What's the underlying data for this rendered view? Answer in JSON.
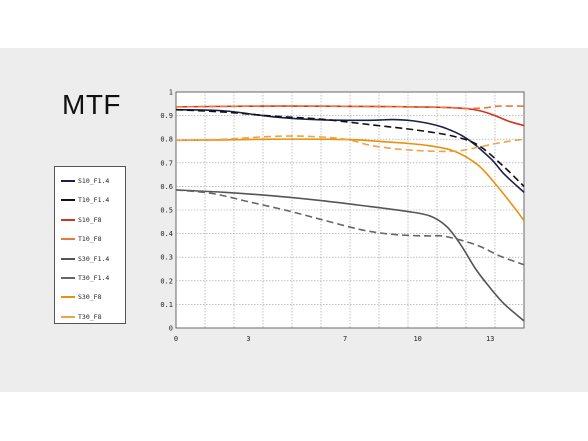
{
  "page": {
    "title": "MTF"
  },
  "chart_data": {
    "type": "line",
    "title": "MTF",
    "xlabel": "",
    "ylabel": "",
    "xlim": [
      0,
      14.4
    ],
    "ylim": [
      0,
      1
    ],
    "x_ticks": [
      0,
      3,
      7,
      10,
      13
    ],
    "y_ticks": [
      0,
      0.1,
      0.2,
      0.3,
      0.4,
      0.5,
      0.6,
      0.7,
      0.8,
      0.9,
      1
    ],
    "x_tick_labels": [
      "0",
      "3",
      "7",
      "10",
      "13"
    ],
    "y_tick_labels": [
      "0",
      "0.1",
      "0.2",
      "0.3",
      "0.4",
      "0.5",
      "0.6",
      "0.7",
      "0.8",
      "0.9",
      "1"
    ],
    "grid": "dotted",
    "legend_position": "left",
    "series": [
      {
        "name": "S10_F1.4",
        "color": "#1a1f4d",
        "dash": "solid",
        "points": [
          [
            0,
            0.925
          ],
          [
            2,
            0.92
          ],
          [
            4,
            0.895
          ],
          [
            6,
            0.882
          ],
          [
            8,
            0.88
          ],
          [
            9,
            0.883
          ],
          [
            10,
            0.875
          ],
          [
            11,
            0.852
          ],
          [
            12,
            0.805
          ],
          [
            13,
            0.72
          ],
          [
            13.6,
            0.65
          ],
          [
            14.4,
            0.575
          ]
        ]
      },
      {
        "name": "T10_F1.4",
        "color": "#111111",
        "dash": "dashed",
        "points": [
          [
            0,
            0.925
          ],
          [
            2,
            0.915
          ],
          [
            4,
            0.898
          ],
          [
            6,
            0.885
          ],
          [
            8,
            0.862
          ],
          [
            10,
            0.838
          ],
          [
            11.5,
            0.812
          ],
          [
            12.5,
            0.775
          ],
          [
            13.5,
            0.69
          ],
          [
            14.4,
            0.6
          ]
        ]
      },
      {
        "name": "S10_F8",
        "color": "#d6311b",
        "dash": "solid",
        "points": [
          [
            0,
            0.937
          ],
          [
            3,
            0.94
          ],
          [
            6,
            0.94
          ],
          [
            9,
            0.938
          ],
          [
            11,
            0.935
          ],
          [
            12,
            0.93
          ],
          [
            12.6,
            0.92
          ],
          [
            13.2,
            0.9
          ],
          [
            13.8,
            0.875
          ],
          [
            14.4,
            0.858
          ]
        ]
      },
      {
        "name": "T10_F8",
        "color": "#e87a3a",
        "dash": "dashed",
        "points": [
          [
            0,
            0.937
          ],
          [
            3,
            0.94
          ],
          [
            6,
            0.94
          ],
          [
            9,
            0.938
          ],
          [
            11,
            0.935
          ],
          [
            12,
            0.93
          ],
          [
            12.8,
            0.933
          ],
          [
            13.3,
            0.94
          ],
          [
            14.4,
            0.94
          ]
        ]
      },
      {
        "name": "S30_F1.4",
        "color": "#555555",
        "dash": "solid",
        "points": [
          [
            0,
            0.585
          ],
          [
            2,
            0.575
          ],
          [
            4,
            0.56
          ],
          [
            6,
            0.54
          ],
          [
            8,
            0.515
          ],
          [
            9.5,
            0.495
          ],
          [
            10.5,
            0.475
          ],
          [
            11.2,
            0.43
          ],
          [
            11.8,
            0.35
          ],
          [
            12.4,
            0.25
          ],
          [
            13,
            0.17
          ],
          [
            13.6,
            0.1
          ],
          [
            14.4,
            0.03
          ]
        ]
      },
      {
        "name": "T30_F1.4",
        "color": "#666666",
        "dash": "dashed",
        "points": [
          [
            0,
            0.585
          ],
          [
            1.5,
            0.57
          ],
          [
            3,
            0.535
          ],
          [
            4.5,
            0.5
          ],
          [
            6,
            0.46
          ],
          [
            7.5,
            0.42
          ],
          [
            8.5,
            0.402
          ],
          [
            9.5,
            0.393
          ],
          [
            10.5,
            0.39
          ],
          [
            11,
            0.39
          ],
          [
            11.8,
            0.372
          ],
          [
            12.6,
            0.345
          ],
          [
            13.4,
            0.305
          ],
          [
            14.4,
            0.268
          ]
        ]
      },
      {
        "name": "S30_F8",
        "color": "#e8920c",
        "dash": "solid",
        "points": [
          [
            0,
            0.795
          ],
          [
            2,
            0.797
          ],
          [
            4,
            0.8
          ],
          [
            6,
            0.8
          ],
          [
            7.5,
            0.797
          ],
          [
            8.5,
            0.79
          ],
          [
            9.5,
            0.783
          ],
          [
            10.5,
            0.772
          ],
          [
            11.5,
            0.75
          ],
          [
            12.5,
            0.69
          ],
          [
            13.3,
            0.6
          ],
          [
            14,
            0.51
          ],
          [
            14.4,
            0.455
          ]
        ]
      },
      {
        "name": "T30_F8",
        "color": "#efa24a",
        "dash": "dashed",
        "points": [
          [
            0,
            0.795
          ],
          [
            2,
            0.8
          ],
          [
            4,
            0.812
          ],
          [
            5.5,
            0.812
          ],
          [
            7,
            0.8
          ],
          [
            8,
            0.775
          ],
          [
            9,
            0.76
          ],
          [
            10,
            0.752
          ],
          [
            11,
            0.748
          ],
          [
            11.8,
            0.752
          ],
          [
            12.6,
            0.768
          ],
          [
            13.4,
            0.785
          ],
          [
            14.4,
            0.8
          ]
        ]
      }
    ]
  }
}
